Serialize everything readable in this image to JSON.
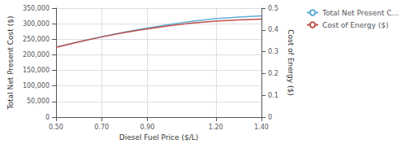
{
  "chart_data": {
    "type": "line",
    "xlabel": "Diesel Fuel Price ($/L)",
    "ylabel": "Total Net Present Cost ($)",
    "y2label": "Cost of Energy ($)",
    "x": [
      0.5,
      0.6,
      0.7,
      0.8,
      0.9,
      1.0,
      1.1,
      1.2,
      1.3,
      1.4
    ],
    "series": [
      {
        "name": "Total Net Present C...",
        "color": "#5bafd6",
        "values": [
          225000,
          242000,
          258000,
          273000,
          286000,
          298000,
          308000,
          316000,
          321000,
          325000
        ]
      },
      {
        "name": "Cost of Energy ($)",
        "color": "#c0504d",
        "axis": "y2",
        "values": [
          0.32,
          0.345,
          0.368,
          0.388,
          0.405,
          0.42,
          0.432,
          0.44,
          0.446,
          0.45
        ]
      }
    ],
    "xlim": [
      0.5,
      1.4
    ],
    "xticks": [
      {
        "value": 0.5,
        "label": "0.50"
      },
      {
        "value": 0.7,
        "label": "0.70"
      },
      {
        "value": 0.9,
        "label": "0.90"
      },
      {
        "value": 1.2,
        "label": "1.20"
      },
      {
        "value": 1.4,
        "label": "1.40"
      }
    ],
    "ylim": [
      0,
      350000
    ],
    "yticks": [
      0,
      {
        "value": 50000,
        "label": "50,000"
      },
      {
        "value": 100000,
        "label": "100,000"
      },
      {
        "value": 150000,
        "label": "150,000"
      },
      {
        "value": 200000,
        "label": "200,000"
      },
      {
        "value": 250000,
        "label": "250,000"
      },
      {
        "value": 300000,
        "label": "300,000"
      },
      {
        "value": 350000,
        "label": "350,000"
      }
    ],
    "y2lim": [
      0,
      0.5
    ],
    "y2ticks": [
      0,
      0.1,
      0.2,
      0.3,
      0.4,
      0.5
    ],
    "grid": true,
    "legend": "right"
  }
}
